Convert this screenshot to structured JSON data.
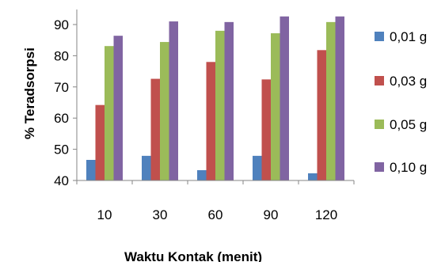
{
  "chart_data": {
    "type": "bar",
    "title": "",
    "xlabel": "Waktu Kontak (menit)",
    "ylabel": "% Teradsorpsi",
    "categories": [
      "10",
      "30",
      "60",
      "90",
      "120"
    ],
    "ylim": [
      40,
      95
    ],
    "yticks": [
      40,
      50,
      60,
      70,
      80,
      90
    ],
    "grid": false,
    "legend_position": "right",
    "series": [
      {
        "name": "0,01 g",
        "color": "#4f81bd",
        "values": [
          46.6,
          47.9,
          43.3,
          47.9,
          42.3
        ]
      },
      {
        "name": "0,03 g",
        "color": "#c0504d",
        "values": [
          64.2,
          72.6,
          78.0,
          72.4,
          81.8
        ]
      },
      {
        "name": "0,05 g",
        "color": "#9bbb59",
        "values": [
          83.1,
          84.4,
          88.0,
          87.2,
          90.8
        ]
      },
      {
        "name": "0,10 g",
        "color": "#8064a2",
        "values": [
          86.4,
          91.0,
          90.8,
          92.6,
          92.6
        ]
      }
    ]
  }
}
